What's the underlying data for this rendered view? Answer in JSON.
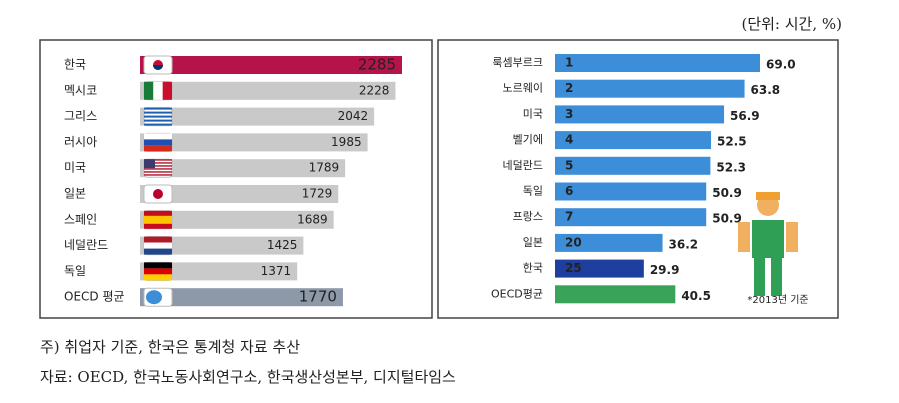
{
  "unit": "(단위: 시간, %)",
  "chart_data": [
    {
      "type": "bar",
      "orientation": "horizontal",
      "categories": [
        "한국",
        "멕시코",
        "그리스",
        "러시아",
        "미국",
        "일본",
        "스페인",
        "네덜란드",
        "독일",
        "OECD 평균"
      ],
      "values": [
        2285,
        2228,
        2042,
        1985,
        1789,
        1729,
        1689,
        1425,
        1371,
        1770
      ],
      "colors": [
        "#b5144a",
        "#c9c9c9",
        "#c9c9c9",
        "#c9c9c9",
        "#c9c9c9",
        "#c9c9c9",
        "#c9c9c9",
        "#c9c9c9",
        "#c9c9c9",
        "#8d98a8"
      ]
    },
    {
      "type": "rankbar",
      "orientation": "horizontal",
      "categories": [
        "룩셈부르크",
        "노르웨이",
        "미국",
        "벨기에",
        "네덜란드",
        "독일",
        "프랑스",
        "일본",
        "한국",
        "OECD평균"
      ],
      "ranks": [
        1,
        2,
        3,
        4,
        5,
        6,
        7,
        20,
        25,
        null
      ],
      "values": [
        69.0,
        63.8,
        56.9,
        52.5,
        52.3,
        50.9,
        50.9,
        36.2,
        29.9,
        40.5
      ],
      "value_labels": [
        "69.0",
        "63.8",
        "56.9",
        "52.5",
        "52.3",
        "50.9",
        "50.9",
        "36.2",
        "29.9",
        "40.5"
      ],
      "colors": [
        "#3d8ed8",
        "#3d8ed8",
        "#3d8ed8",
        "#3d8ed8",
        "#3d8ed8",
        "#3d8ed8",
        "#3d8ed8",
        "#3d8ed8",
        "#1f3f9f",
        "#3aa35a"
      ],
      "note": "*2013년 기준"
    }
  ],
  "notes": [
    "주) 취업자 기준, 한국은 통계청 자료 추산",
    "자료: OECD, 한국노동사회연구소, 한국생산성본부, 디지털타임스"
  ]
}
